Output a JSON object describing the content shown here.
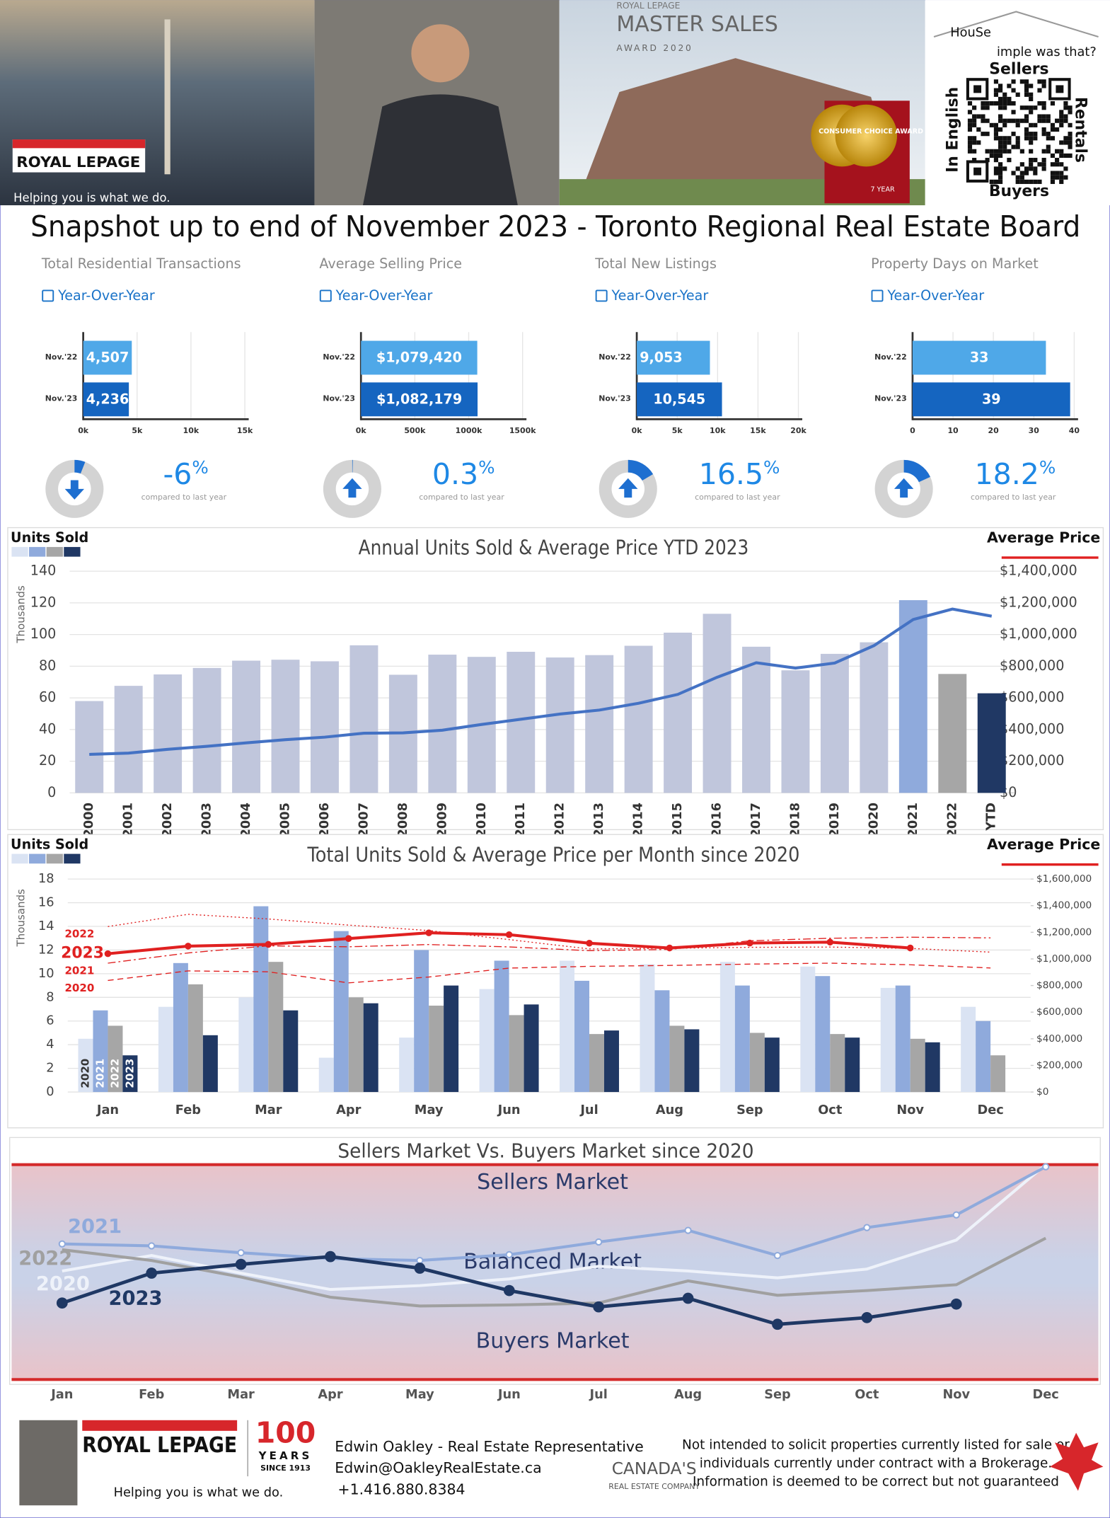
{
  "header": {
    "title": "Snapshot up to end of November 2023 - Toronto Regional Real Estate Board",
    "logo_brand": "ROYAL LEPAGE",
    "logo_tagline": "Helping you is what we do.",
    "award_brand": "ROYAL LEPAGE",
    "award_title": "MASTER SALES",
    "award_year": "AWARD 2020",
    "badge": "CONSUMER CHOICE AWARD",
    "badge_years": "7 YEAR",
    "qr_line1": "HouSe",
    "qr_line2": "imple was that?",
    "qr_top": "Sellers",
    "qr_right": "Rentals",
    "qr_bottom": "Buyers",
    "qr_left": "In English"
  },
  "chart_data": [
    {
      "type": "hbar",
      "title": "Total Residential Transactions",
      "period": "Year-Over-Year",
      "categories": [
        "Nov.'22",
        "Nov.'23"
      ],
      "values": [
        4507,
        4236
      ],
      "value_labels": [
        "4,507",
        "4,236"
      ],
      "colors": [
        "#4fa8e8",
        "#1565c0"
      ],
      "xlim": [
        0,
        15000
      ],
      "xticks": [
        {
          "value": 0,
          "label": "0k"
        },
        {
          "value": 5000,
          "label": "5k"
        },
        {
          "value": 10000,
          "label": "10k"
        },
        {
          "value": 15000,
          "label": "15k"
        }
      ],
      "change": -6,
      "change_unit": "%",
      "note": "compared to last year"
    },
    {
      "type": "hbar",
      "title": "Average Selling Price",
      "period": "Year-Over-Year",
      "categories": [
        "Nov.'22",
        "Nov.'23"
      ],
      "values": [
        1079420,
        1082179
      ],
      "value_labels": [
        "$1,079,420",
        "$1,082,179"
      ],
      "colors": [
        "#4fa8e8",
        "#1565c0"
      ],
      "xlim": [
        0,
        1500000
      ],
      "xticks": [
        {
          "value": 0,
          "label": "0k"
        },
        {
          "value": 500000,
          "label": "500k"
        },
        {
          "value": 1000000,
          "label": "1000k"
        },
        {
          "value": 1500000,
          "label": "1500k"
        }
      ],
      "change": 0.3,
      "change_unit": "%",
      "note": "compared to last year"
    },
    {
      "type": "hbar",
      "title": "Total New Listings",
      "period": "Year-Over-Year",
      "categories": [
        "Nov.'22",
        "Nov.'23"
      ],
      "values": [
        9053,
        10545
      ],
      "value_labels": [
        "9,053",
        "10,545"
      ],
      "colors": [
        "#4fa8e8",
        "#1565c0"
      ],
      "xlim": [
        0,
        20000
      ],
      "xticks": [
        {
          "value": 0,
          "label": "0k"
        },
        {
          "value": 5000,
          "label": "5k"
        },
        {
          "value": 10000,
          "label": "10k"
        },
        {
          "value": 15000,
          "label": "15k"
        },
        {
          "value": 20000,
          "label": "20k"
        }
      ],
      "change": 16.5,
      "change_unit": "%",
      "note": "compared to last year"
    },
    {
      "type": "hbar",
      "title": "Property Days on Market",
      "period": "Year-Over-Year",
      "categories": [
        "Nov.'22",
        "Nov.'23"
      ],
      "values": [
        33,
        39
      ],
      "colors": [
        "#4fa8e8",
        "#1565c0"
      ],
      "xlim": [
        0,
        40
      ],
      "xticks": [
        0,
        10,
        20,
        30,
        40
      ],
      "change": 18.2,
      "change_unit": "%",
      "note": "compared to last year"
    },
    {
      "type": "combo",
      "title": "Annual Units Sold & Average Price YTD 2023",
      "y_label": "Thousands",
      "categories": [
        "2000",
        "2001",
        "2002",
        "2003",
        "2004",
        "2005",
        "2006",
        "2007",
        "2008",
        "2009",
        "2010",
        "2011",
        "2012",
        "2013",
        "2014",
        "2015",
        "2016",
        "2017",
        "2018",
        "2019",
        "2020",
        "2021",
        "2022",
        "YTD"
      ],
      "legend_colors": [
        "#dae3f3",
        "#8faadc",
        "#a6a6a6",
        "#203864"
      ],
      "series": [
        {
          "name": "Units Sold",
          "values": [
            58,
            67.6,
            74.8,
            78.9,
            83.5,
            84.1,
            83.1,
            93.2,
            74.6,
            87.3,
            85.9,
            89.1,
            85.5,
            87.0,
            92.9,
            101.2,
            113.1,
            92.3,
            77.4,
            87.8,
            95.1,
            121.7,
            75.1,
            62.9
          ],
          "colors": [
            "#c0c6dc",
            "#c0c6dc",
            "#c0c6dc",
            "#c0c6dc",
            "#c0c6dc",
            "#c0c6dc",
            "#c0c6dc",
            "#c0c6dc",
            "#c0c6dc",
            "#c0c6dc",
            "#c0c6dc",
            "#c0c6dc",
            "#c0c6dc",
            "#c0c6dc",
            "#c0c6dc",
            "#c0c6dc",
            "#c0c6dc",
            "#c0c6dc",
            "#c0c6dc",
            "#c0c6dc",
            "#c0c6dc",
            "#8faadc",
            "#a6a6a6",
            "#203864"
          ]
        },
        {
          "name": "Average Price",
          "axis": "y2",
          "color": "#4472c4",
          "values": [
            243000,
            251000,
            275000,
            294000,
            316000,
            336000,
            352000,
            377000,
            379000,
            396000,
            432000,
            465000,
            498000,
            523000,
            566000,
            622000,
            730000,
            822000,
            788000,
            820000,
            930000,
            1095000,
            1161000,
            1116000
          ]
        }
      ],
      "ylim": [
        0,
        140
      ],
      "yticks": [
        0,
        20,
        40,
        60,
        80,
        100,
        120,
        140
      ],
      "y2lim": [
        0,
        1400000
      ],
      "y2ticks": [
        {
          "value": 0,
          "label": "$0"
        },
        {
          "value": 200000,
          "label": "$200,000"
        },
        {
          "value": 400000,
          "label": "$400,000"
        },
        {
          "value": 600000,
          "label": "$600,000"
        },
        {
          "value": 800000,
          "label": "$800,000"
        },
        {
          "value": 1000000,
          "label": "$1,000,000"
        },
        {
          "value": 1200000,
          "label": "$1,200,000"
        },
        {
          "value": 1400000,
          "label": "$1,400,000"
        }
      ],
      "grid": true
    },
    {
      "type": "combo",
      "title": "Total Units Sold & Average Price per Month since 2020",
      "y_label": "Thousands",
      "units_label": "Units Sold",
      "price_label": "Average Price",
      "categories": [
        "Jan",
        "Feb",
        "Mar",
        "Apr",
        "May",
        "Jun",
        "Jul",
        "Aug",
        "Sep",
        "Oct",
        "Nov",
        "Dec"
      ],
      "series": [
        {
          "name": "2020",
          "color": "#dae3f3",
          "values": [
            4.5,
            7.2,
            8.0,
            2.9,
            4.6,
            8.7,
            11.1,
            10.8,
            11.0,
            10.6,
            8.8,
            7.2
          ]
        },
        {
          "name": "2021",
          "color": "#8faadc",
          "values": [
            6.9,
            10.9,
            15.7,
            13.6,
            12.0,
            11.1,
            9.4,
            8.6,
            9.0,
            9.8,
            9.0,
            6.0
          ]
        },
        {
          "name": "2022",
          "color": "#a6a6a6",
          "values": [
            5.6,
            9.1,
            11.0,
            8.0,
            7.3,
            6.5,
            4.9,
            5.6,
            5.0,
            4.9,
            4.5,
            3.1
          ]
        },
        {
          "name": "2023",
          "color": "#203864",
          "values": [
            3.1,
            4.8,
            6.9,
            7.5,
            9.0,
            7.4,
            5.2,
            5.3,
            4.6,
            4.6,
            4.2,
            null
          ]
        },
        {
          "name": "2020",
          "axis": "y2",
          "color": "#e02020",
          "dash": "dashed",
          "values": [
            838000,
            910000,
            903000,
            820000,
            864000,
            931000,
            944000,
            951000,
            961000,
            968000,
            956000,
            932000
          ]
        },
        {
          "name": "2021",
          "axis": "y2",
          "color": "#e02020",
          "dash": "dashdot",
          "values": [
            968000,
            1045000,
            1098000,
            1091000,
            1108000,
            1090000,
            1062000,
            1071000,
            1136000,
            1155000,
            1163000,
            1158000
          ]
        },
        {
          "name": "2022",
          "axis": "y2",
          "color": "#e02020",
          "dash": "dotted",
          "values": [
            1243000,
            1335000,
            1300000,
            1254000,
            1213000,
            1145000,
            1075000,
            1080000,
            1087000,
            1089000,
            1079000,
            1051000
          ]
        },
        {
          "name": "2023",
          "axis": "y2",
          "color": "#e02020",
          "markers": "filled",
          "values": [
            1039000,
            1096000,
            1109000,
            1153000,
            1196000,
            1182000,
            1118000,
            1082000,
            1119000,
            1126000,
            1082000,
            null
          ]
        }
      ],
      "ylim": [
        0,
        18
      ],
      "yticks": [
        0,
        2,
        4,
        6,
        8,
        10,
        12,
        14,
        16,
        18
      ],
      "y2lim": [
        0,
        1600000
      ],
      "y2ticks": [
        {
          "value": 0,
          "label": "$0"
        },
        {
          "value": 200000,
          "label": "$200,000"
        },
        {
          "value": 400000,
          "label": "$400,000"
        },
        {
          "value": 600000,
          "label": "$600,000"
        },
        {
          "value": 800000,
          "label": "$800,000"
        },
        {
          "value": 1000000,
          "label": "$1,000,000"
        },
        {
          "value": 1200000,
          "label": "$1,200,000"
        },
        {
          "value": 1400000,
          "label": "$1,400,000"
        },
        {
          "value": 1600000,
          "label": "$1,600,000"
        }
      ],
      "grid": true
    },
    {
      "type": "line",
      "title": "Sellers Market Vs. Buyers Market since 2020",
      "zones": [
        "Sellers Market",
        "Balanced Market",
        "Buyers Market"
      ],
      "categories": [
        "Jan",
        "Feb",
        "Mar",
        "Apr",
        "May",
        "Jun",
        "Jul",
        "Aug",
        "Sep",
        "Oct",
        "Nov",
        "Dec"
      ],
      "ylim": [
        0,
        100
      ],
      "series": [
        {
          "name": "2020",
          "color": "#eef2fa",
          "values": [
            50.5,
            57.7,
            49.5,
            41.9,
            43.7,
            46.8,
            52.7,
            50.5,
            47.3,
            51.4,
            64.9,
            100
          ]
        },
        {
          "name": "2021",
          "color": "#8faadc",
          "markers": "hollow",
          "values": [
            63.1,
            62.2,
            59,
            56.3,
            55.4,
            58.1,
            64,
            69.4,
            57.7,
            70.7,
            76.6,
            99
          ]
        },
        {
          "name": "2022",
          "color": "#a0a0a0",
          "values": [
            60.4,
            55.4,
            47.7,
            38.3,
            34.2,
            34.7,
            35.6,
            45.9,
            39.2,
            41.4,
            44.1,
            65.8
          ]
        },
        {
          "name": "2023",
          "color": "#1f3864",
          "markers": "filled",
          "values": [
            35.6,
            49.5,
            53.6,
            57.2,
            51.8,
            41.4,
            33.8,
            37.8,
            25.7,
            28.8,
            35.1,
            null
          ]
        }
      ]
    }
  ],
  "footer": {
    "brand": "ROYAL LEPAGE",
    "tagline": "Helping you is what we do.",
    "years": "100",
    "years_word": "YEARS",
    "since": "SINCE 1913",
    "name": "Edwin Oakley - Real Estate Representative",
    "email": "Edwin@OakleyRealEstate.ca",
    "phone": "+1.416.880.8384",
    "company_1": "CANADA'S",
    "company_2": "REAL ESTATE COMPANY",
    "disclaimer": [
      "Not intended to solicit properties currently listed for sale or",
      "individuals currently under contract with a Brokerage.",
      "Information is deemed to be correct but not guaranteed"
    ]
  }
}
